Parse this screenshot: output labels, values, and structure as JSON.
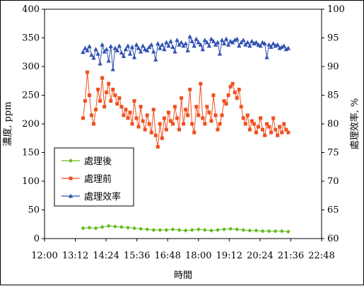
{
  "chart_data": {
    "type": "line",
    "title": "",
    "xlabel": "時間",
    "ylabel_left": "濃度, ppm",
    "ylabel_right": "處理效率, %",
    "x_ticks": [
      "12:00",
      "13:12",
      "14:24",
      "15:36",
      "16:48",
      "18:00",
      "19:12",
      "20:24",
      "21:36",
      "22:48"
    ],
    "x_range_minutes": [
      0,
      648
    ],
    "ylim_left": [
      0,
      400
    ],
    "ylim_right": [
      60,
      100
    ],
    "y_left_ticks": [
      0,
      50,
      100,
      150,
      200,
      250,
      300,
      350,
      400
    ],
    "y_right_ticks": [
      60,
      65,
      70,
      75,
      80,
      85,
      90,
      95,
      100
    ],
    "grid": false,
    "legend_position": "left-middle",
    "x_unit": "minutes after 12:00",
    "series": [
      {
        "name": "處理後",
        "axis": "left",
        "marker": "diamond",
        "color": "#66bb22",
        "x": [
          90,
          105,
          120,
          135,
          150,
          165,
          180,
          195,
          210,
          225,
          240,
          255,
          270,
          285,
          300,
          315,
          330,
          345,
          360,
          375,
          390,
          405,
          420,
          435,
          450,
          465,
          480,
          495,
          510,
          525,
          540,
          555,
          570
        ],
        "y": [
          18,
          19,
          18,
          20,
          22,
          21,
          20,
          19,
          18,
          17,
          16,
          15,
          15,
          15,
          16,
          15,
          14,
          15,
          16,
          15,
          14,
          15,
          16,
          17,
          16,
          15,
          14,
          14,
          13,
          13,
          13,
          13,
          12
        ]
      },
      {
        "name": "處理前",
        "axis": "left",
        "marker": "square",
        "color": "#f05020",
        "x": [
          90,
          95,
          100,
          105,
          110,
          115,
          120,
          125,
          130,
          135,
          140,
          145,
          150,
          155,
          160,
          165,
          170,
          175,
          180,
          185,
          190,
          195,
          200,
          205,
          210,
          215,
          220,
          225,
          230,
          235,
          240,
          245,
          250,
          255,
          260,
          265,
          270,
          275,
          280,
          285,
          290,
          295,
          300,
          305,
          310,
          315,
          320,
          325,
          330,
          335,
          340,
          345,
          350,
          355,
          360,
          365,
          370,
          375,
          380,
          385,
          390,
          395,
          400,
          405,
          410,
          415,
          420,
          425,
          430,
          435,
          440,
          445,
          450,
          455,
          460,
          465,
          470,
          475,
          480,
          485,
          490,
          495,
          500,
          505,
          510,
          515,
          520,
          525,
          530,
          535,
          540,
          545,
          550,
          555,
          560,
          565,
          570
        ],
        "y": [
          210,
          240,
          290,
          250,
          215,
          200,
          225,
          260,
          240,
          280,
          230,
          255,
          270,
          240,
          260,
          250,
          235,
          245,
          230,
          215,
          225,
          210,
          220,
          200,
          240,
          210,
          195,
          230,
          205,
          190,
          215,
          200,
          185,
          225,
          180,
          160,
          200,
          175,
          210,
          190,
          220,
          205,
          200,
          230,
          210,
          190,
          245,
          200,
          225,
          215,
          260,
          200,
          185,
          230,
          215,
          270,
          210,
          200,
          230,
          220,
          205,
          250,
          215,
          190,
          200,
          215,
          240,
          235,
          250,
          265,
          270,
          255,
          245,
          260,
          230,
          210,
          200,
          215,
          190,
          205,
          200,
          185,
          195,
          210,
          190,
          180,
          200,
          195,
          185,
          210,
          190,
          180,
          195,
          185,
          200,
          190,
          185
        ]
      },
      {
        "name": "處理效率",
        "axis": "right",
        "marker": "triangle",
        "color": "#3050b0",
        "x": [
          90,
          95,
          100,
          105,
          110,
          115,
          120,
          125,
          130,
          135,
          140,
          145,
          150,
          155,
          160,
          165,
          170,
          175,
          180,
          185,
          190,
          195,
          200,
          205,
          210,
          215,
          220,
          225,
          230,
          235,
          240,
          245,
          250,
          255,
          260,
          265,
          270,
          275,
          280,
          285,
          290,
          295,
          300,
          305,
          310,
          315,
          320,
          325,
          330,
          335,
          340,
          345,
          350,
          355,
          360,
          365,
          370,
          375,
          380,
          385,
          390,
          395,
          400,
          405,
          410,
          415,
          420,
          425,
          430,
          435,
          440,
          445,
          450,
          455,
          460,
          465,
          470,
          475,
          480,
          485,
          490,
          495,
          500,
          505,
          510,
          515,
          520,
          525,
          530,
          535,
          540,
          545,
          550,
          555,
          560,
          565,
          570
        ],
        "y": [
          92.5,
          93.2,
          92.8,
          93.5,
          92.0,
          91.5,
          93.0,
          92.2,
          90.5,
          93.8,
          92.6,
          93.0,
          91.0,
          93.5,
          89.5,
          93.2,
          92.8,
          93.6,
          92.4,
          91.8,
          93.0,
          93.6,
          92.2,
          93.4,
          91.6,
          93.8,
          93.2,
          92.6,
          93.6,
          93.0,
          92.8,
          93.4,
          93.8,
          92.6,
          91.2,
          94.0,
          93.2,
          93.8,
          93.0,
          94.2,
          93.6,
          94.4,
          93.4,
          92.6,
          94.6,
          93.8,
          94.2,
          93.6,
          94.0,
          92.8,
          95.2,
          94.4,
          93.6,
          94.8,
          94.2,
          93.8,
          93.0,
          94.6,
          94.2,
          93.6,
          94.8,
          94.4,
          93.8,
          94.2,
          92.2,
          94.6,
          94.0,
          94.8,
          93.8,
          94.4,
          94.2,
          94.6,
          94.8,
          93.6,
          94.2,
          94.6,
          93.8,
          94.2,
          93.6,
          94.4,
          94.0,
          94.2,
          93.8,
          93.6,
          94.2,
          94.0,
          91.6,
          93.8,
          93.4,
          94.0,
          93.6,
          93.8,
          93.2,
          93.4,
          93.6,
          93.0,
          93.2
        ]
      }
    ]
  }
}
